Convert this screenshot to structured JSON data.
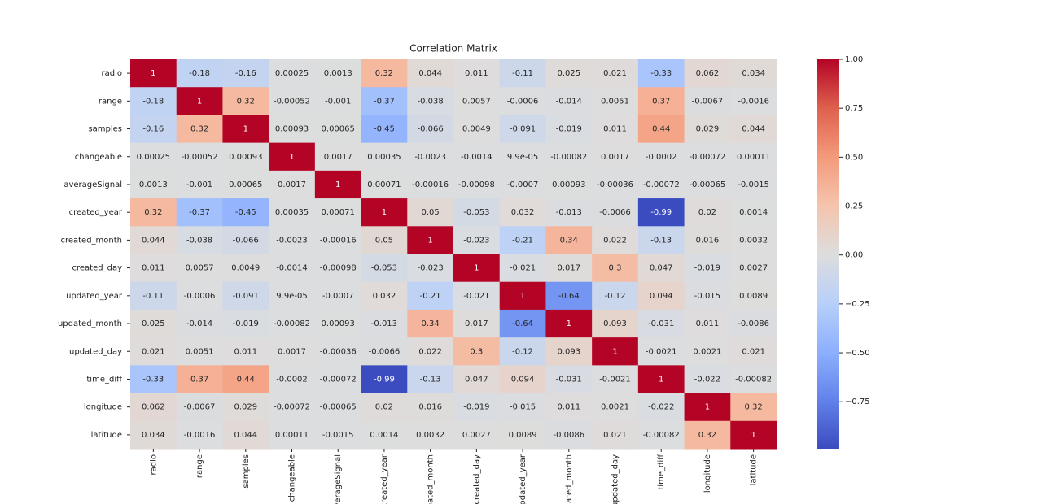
{
  "chart_data": {
    "type": "heatmap",
    "title": "Correlation Matrix",
    "colormap": "coolwarm",
    "categories": [
      "radio",
      "range",
      "samples",
      "changeable",
      "averageSignal",
      "created_year",
      "created_month",
      "created_day",
      "updated_year",
      "updated_month",
      "updated_day",
      "time_diff",
      "longitude",
      "latitude"
    ],
    "values": [
      [
        1,
        -0.18,
        -0.16,
        0.00025,
        0.0013,
        0.32,
        0.044,
        0.011,
        -0.11,
        0.025,
        0.021,
        -0.33,
        0.062,
        0.034
      ],
      [
        -0.18,
        1,
        0.32,
        -0.00052,
        -0.001,
        -0.37,
        -0.038,
        0.0057,
        -0.0006,
        -0.014,
        0.0051,
        0.37,
        -0.0067,
        -0.0016
      ],
      [
        -0.16,
        0.32,
        1,
        0.00093,
        0.00065,
        -0.45,
        -0.066,
        0.0049,
        -0.091,
        -0.019,
        0.011,
        0.44,
        0.029,
        0.044
      ],
      [
        0.00025,
        -0.00052,
        0.00093,
        1,
        0.0017,
        0.00035,
        -0.0023,
        -0.0014,
        9.9e-05,
        -0.00082,
        0.0017,
        -0.0002,
        -0.00072,
        0.00011
      ],
      [
        0.0013,
        -0.001,
        0.00065,
        0.0017,
        1,
        0.00071,
        -0.00016,
        -0.00098,
        -0.0007,
        0.00093,
        -0.00036,
        -0.00072,
        -0.00065,
        -0.0015
      ],
      [
        0.32,
        -0.37,
        -0.45,
        0.00035,
        0.00071,
        1,
        0.05,
        -0.053,
        0.032,
        -0.013,
        -0.0066,
        -0.99,
        0.02,
        0.0014
      ],
      [
        0.044,
        -0.038,
        -0.066,
        -0.0023,
        -0.00016,
        0.05,
        1,
        -0.023,
        -0.21,
        0.34,
        0.022,
        -0.13,
        0.016,
        0.0032
      ],
      [
        0.011,
        0.0057,
        0.0049,
        -0.0014,
        -0.00098,
        -0.053,
        -0.023,
        1,
        -0.021,
        0.017,
        0.3,
        0.047,
        -0.019,
        0.0027
      ],
      [
        -0.11,
        -0.0006,
        -0.091,
        9.9e-05,
        -0.0007,
        0.032,
        -0.21,
        -0.021,
        1,
        -0.64,
        -0.12,
        0.094,
        -0.015,
        0.0089
      ],
      [
        0.025,
        -0.014,
        -0.019,
        -0.00082,
        0.00093,
        -0.013,
        0.34,
        0.017,
        -0.64,
        1,
        0.093,
        -0.031,
        0.011,
        -0.0086
      ],
      [
        0.021,
        0.0051,
        0.011,
        0.0017,
        -0.00036,
        -0.0066,
        0.022,
        0.3,
        -0.12,
        0.093,
        1,
        -0.0021,
        0.0021,
        0.021
      ],
      [
        -0.33,
        0.37,
        0.44,
        -0.0002,
        -0.00072,
        -0.99,
        -0.13,
        0.047,
        0.094,
        -0.031,
        -0.0021,
        1,
        -0.022,
        -0.00082
      ],
      [
        0.062,
        -0.0067,
        0.029,
        -0.00072,
        -0.00065,
        0.02,
        0.016,
        -0.019,
        -0.015,
        0.011,
        0.0021,
        -0.022,
        1,
        0.32
      ],
      [
        0.034,
        -0.0016,
        0.044,
        0.00011,
        -0.0015,
        0.0014,
        0.0032,
        0.0027,
        0.0089,
        -0.0086,
        0.021,
        -0.00082,
        0.32,
        1
      ]
    ],
    "value_labels": [
      [
        null,
        null,
        null,
        null,
        null,
        null,
        null,
        null,
        null,
        null,
        null,
        null,
        null,
        null
      ],
      [
        null,
        null,
        null,
        null,
        null,
        null,
        null,
        null,
        null,
        null,
        null,
        null,
        null,
        null
      ],
      [
        null,
        null,
        null,
        null,
        null,
        null,
        null,
        null,
        null,
        null,
        null,
        null,
        null,
        null
      ],
      [
        null,
        null,
        null,
        null,
        null,
        null,
        null,
        null,
        "9.9e-05",
        null,
        null,
        null,
        null,
        null
      ],
      [
        null,
        null,
        null,
        null,
        null,
        null,
        null,
        null,
        null,
        null,
        null,
        null,
        null,
        null
      ],
      [
        null,
        null,
        null,
        null,
        null,
        null,
        null,
        null,
        null,
        null,
        null,
        null,
        null,
        null
      ],
      [
        null,
        null,
        null,
        null,
        null,
        null,
        null,
        null,
        null,
        null,
        null,
        null,
        null,
        null
      ],
      [
        null,
        null,
        null,
        null,
        null,
        null,
        null,
        null,
        null,
        null,
        null,
        null,
        null,
        null
      ],
      [
        null,
        null,
        null,
        "9.9e-05",
        null,
        null,
        null,
        null,
        null,
        null,
        null,
        null,
        null,
        null
      ],
      [
        null,
        null,
        null,
        null,
        null,
        null,
        null,
        null,
        null,
        null,
        null,
        null,
        null,
        null
      ],
      [
        null,
        null,
        null,
        null,
        null,
        null,
        null,
        null,
        null,
        null,
        null,
        null,
        null,
        null
      ],
      [
        null,
        null,
        null,
        null,
        null,
        null,
        null,
        null,
        null,
        null,
        null,
        null,
        null,
        null
      ],
      [
        null,
        null,
        null,
        null,
        null,
        null,
        null,
        null,
        null,
        null,
        null,
        null,
        null,
        null
      ],
      [
        null,
        null,
        null,
        null,
        null,
        null,
        null,
        null,
        null,
        null,
        null,
        null,
        null,
        null
      ]
    ],
    "colorbar_lim": [
      -0.99,
      1
    ],
    "colorbar_ticks": [
      {
        "value": 1,
        "label": "1.00"
      },
      {
        "value": 0.75,
        "label": "0.75"
      },
      {
        "value": 0.5,
        "label": "0.50"
      },
      {
        "value": 0.25,
        "label": "0.25"
      },
      {
        "value": 0,
        "label": "0.00"
      },
      {
        "value": -0.25,
        "label": "−0.25"
      },
      {
        "value": -0.5,
        "label": "−0.50"
      },
      {
        "value": -0.75,
        "label": "−0.75"
      }
    ]
  }
}
